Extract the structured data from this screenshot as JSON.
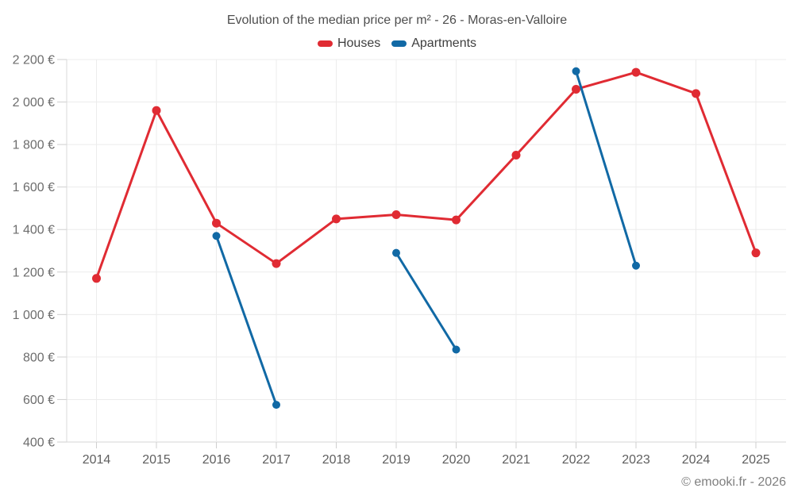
{
  "footer": {
    "copyright": "© emooki.fr - 2026"
  },
  "chart_data": {
    "type": "line",
    "title": "Evolution of the median price per m² - 26 - Moras-en-Valloire",
    "x": [
      2014,
      2015,
      2016,
      2017,
      2018,
      2019,
      2020,
      2021,
      2022,
      2023,
      2024,
      2025
    ],
    "xtick_labels": [
      "2014",
      "2015",
      "2016",
      "2017",
      "2018",
      "2019",
      "2020",
      "2021",
      "2022",
      "2023",
      "2024",
      "2025"
    ],
    "series": [
      {
        "name": "Houses",
        "color": "#e02b33",
        "values": [
          1170,
          1960,
          1430,
          1240,
          1450,
          1470,
          1445,
          1750,
          2060,
          2140,
          2040,
          1290
        ]
      },
      {
        "name": "Apartments",
        "color": "#1169a5",
        "values": [
          null,
          null,
          1370,
          575,
          null,
          1290,
          835,
          null,
          2145,
          1230,
          null,
          null
        ]
      }
    ],
    "ylim": [
      400,
      2200
    ],
    "yticks": [
      400,
      600,
      800,
      1000,
      1200,
      1400,
      1600,
      1800,
      2000,
      2200
    ],
    "ytick_labels": [
      "400 €",
      "600 €",
      "800 €",
      "1 000 €",
      "1 200 €",
      "1 400 €",
      "1 600 €",
      "1 800 €",
      "2 000 €",
      "2 200 €"
    ],
    "xlabel": "",
    "ylabel": "",
    "grid": true,
    "legend_position": "top",
    "gap_policy": "null values break the line into separate segments"
  }
}
